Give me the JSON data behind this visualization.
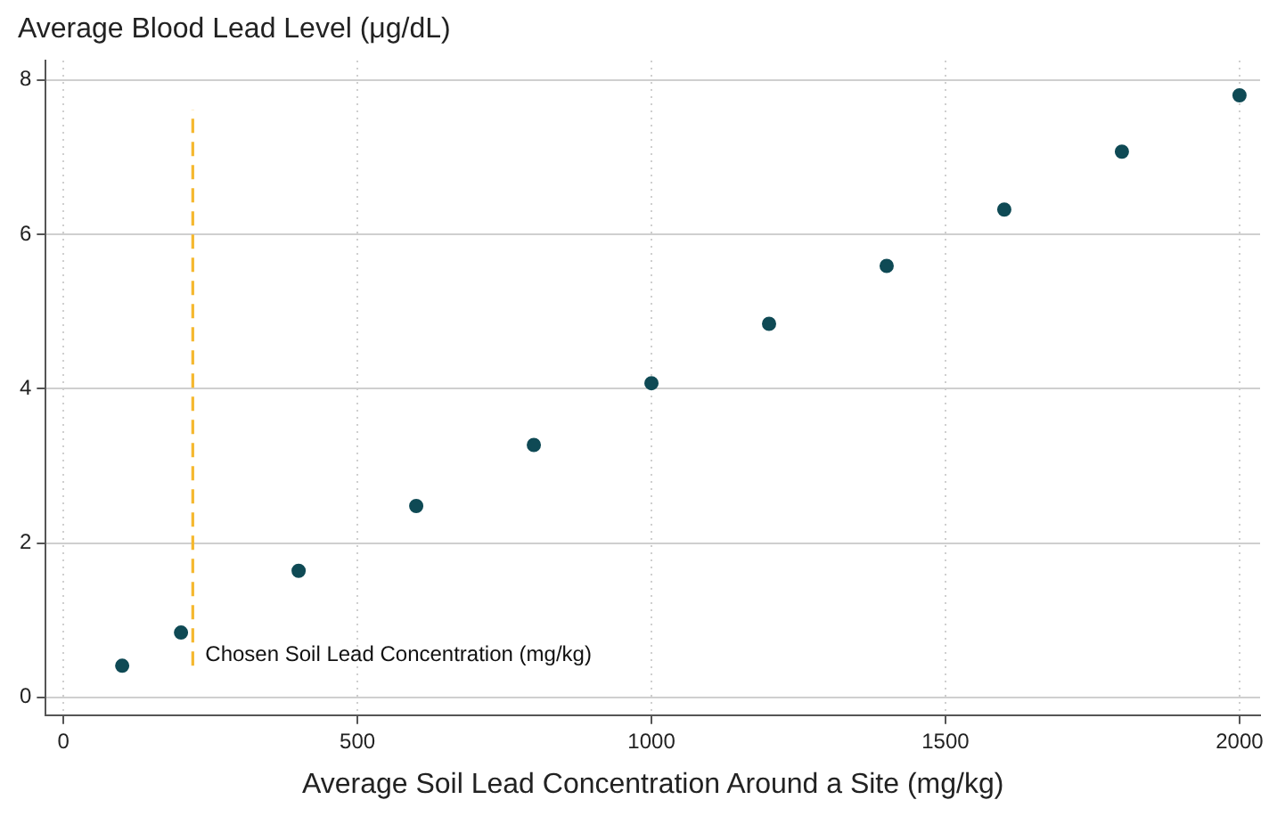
{
  "chart_data": {
    "type": "scatter",
    "ylabel": "Average Blood Lead Level (μg/dL)",
    "xlabel": "Average Soil Lead Concentration Around a Site (mg/kg)",
    "x": [
      100,
      200,
      400,
      600,
      800,
      1000,
      1200,
      1400,
      1600,
      1800,
      2000
    ],
    "series": [
      {
        "color": "#0f4a55",
        "values": [
          0.41,
          0.84,
          1.64,
          2.48,
          3.27,
          4.07,
          4.84,
          5.59,
          6.32,
          7.07,
          7.8
        ]
      }
    ],
    "xlim": [
      -30,
      2035
    ],
    "xticks": [
      0,
      500,
      1000,
      1500,
      2000
    ],
    "ylim": [
      -0.23,
      8.25
    ],
    "yticks": [
      0,
      2,
      4,
      6,
      8
    ],
    "ref_lines": [
      {
        "axis": "x",
        "value": 220,
        "label": "Chosen Soil Lead Concentration (mg/kg)",
        "color": "#f5b82e",
        "line_style": "dashed"
      }
    ],
    "grid": true,
    "marker": "circle",
    "legend": false
  }
}
